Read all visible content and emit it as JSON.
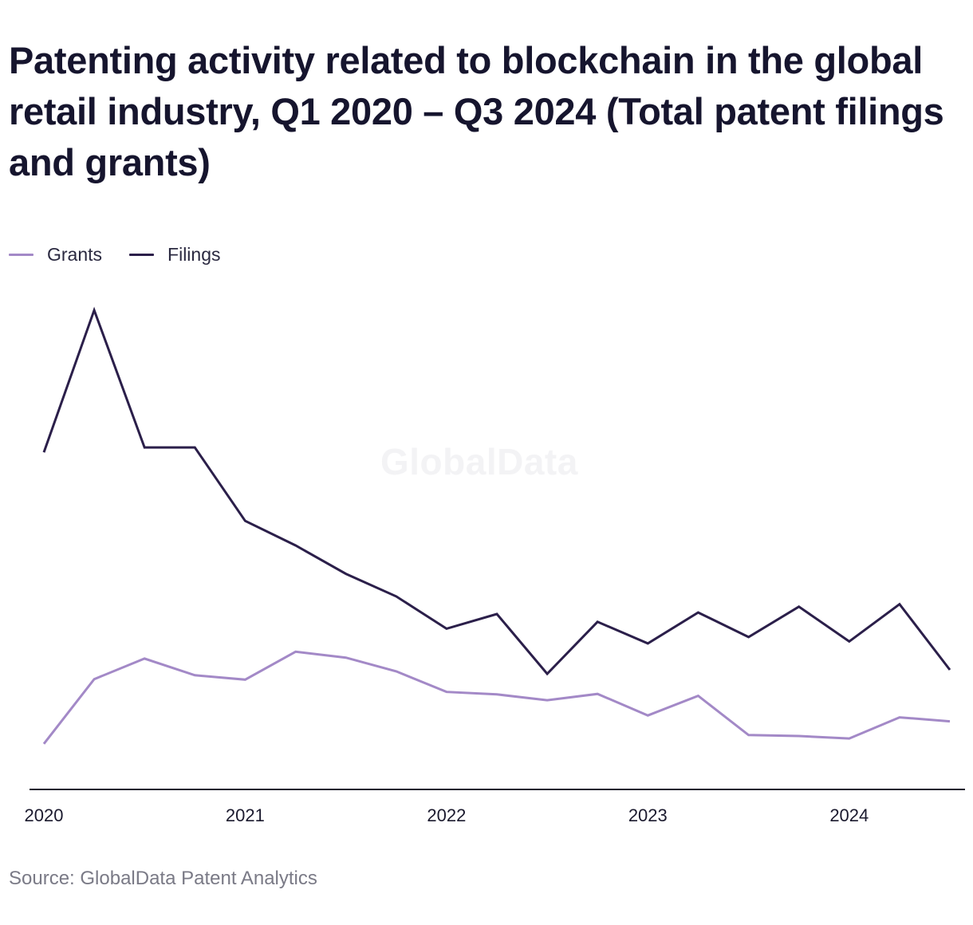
{
  "title": "Patenting activity related to blockchain in the global retail industry, Q1 2020 – Q3 2024 (Total patent filings and grants)",
  "watermark": "GlobalData",
  "source": "Source: GlobalData Patent Analytics",
  "colors": {
    "grants": "#a389c7",
    "filings": "#2b1f4a",
    "axis": "#1b1a2e",
    "tick_text": "#1b1a2e"
  },
  "chart_data": {
    "type": "line",
    "x": [
      "Q1 2020",
      "Q2 2020",
      "Q3 2020",
      "Q4 2020",
      "Q1 2021",
      "Q2 2021",
      "Q3 2021",
      "Q4 2021",
      "Q1 2022",
      "Q2 2022",
      "Q3 2022",
      "Q4 2022",
      "Q1 2023",
      "Q2 2023",
      "Q3 2023",
      "Q4 2023",
      "Q1 2024",
      "Q2 2024",
      "Q3 2024"
    ],
    "x_tick_labels": [
      "2020",
      "2021",
      "2022",
      "2023",
      "2024"
    ],
    "ylim": [
      0,
      100
    ],
    "grid": false,
    "legend_position": "top-left",
    "series": [
      {
        "name": "Grants",
        "color": "#a389c7",
        "values": [
          11.5,
          24.7,
          28.9,
          25.5,
          24.6,
          30.3,
          29.1,
          26.3,
          22.1,
          21.6,
          20.4,
          21.7,
          17.3,
          21.3,
          13.3,
          13.1,
          12.6,
          16.9,
          16.1
        ]
      },
      {
        "name": "Filings",
        "color": "#2b1f4a",
        "values": [
          71.0,
          100.0,
          72.0,
          72.0,
          57.0,
          52.0,
          46.2,
          41.6,
          35.0,
          38.0,
          25.8,
          36.4,
          32.0,
          38.3,
          33.3,
          39.5,
          32.4,
          40.0,
          26.6
        ]
      }
    ]
  }
}
